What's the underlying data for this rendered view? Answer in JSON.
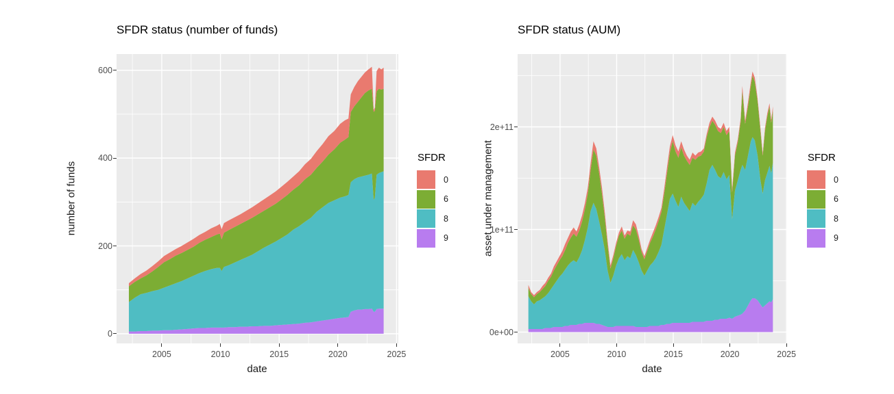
{
  "page": {
    "background": "#ffffff"
  },
  "panel_style": {
    "bg": "#ebebeb",
    "grid_major": "#ffffff",
    "grid_minor": "#ffffff",
    "tick_mark_color": "#333333",
    "tick_text_color": "#4d4d4d"
  },
  "palette": {
    "0": "#e97a6f",
    "6": "#7cad34",
    "8": "#4fbdc3",
    "9": "#b87cef"
  },
  "legend": {
    "title": "SFDR",
    "entries": [
      {
        "label": "0",
        "color": "#e97a6f"
      },
      {
        "label": "6",
        "color": "#7cad34"
      },
      {
        "label": "8",
        "color": "#4fbdc3"
      },
      {
        "label": "9",
        "color": "#b87cef"
      }
    ]
  },
  "chart_data": [
    {
      "type": "area",
      "stacked": true,
      "stack_order_bottom_to_top": [
        "9",
        "8",
        "6",
        "0"
      ],
      "title": "SFDR status (number of funds)",
      "xlabel": "date",
      "ylabel": "number of funds",
      "legend_title": "SFDR",
      "legend_position": "right",
      "grid": true,
      "xlim": [
        2001.15,
        2025.15
      ],
      "ylim": [
        -22,
        637
      ],
      "x_ticks": [
        {
          "v": 2005,
          "label": "2005"
        },
        {
          "v": 2010,
          "label": "2010"
        },
        {
          "v": 2015,
          "label": "2015"
        },
        {
          "v": 2020,
          "label": "2020"
        },
        {
          "v": 2025,
          "label": "2025"
        }
      ],
      "y_ticks": [
        {
          "v": 0,
          "label": "0"
        },
        {
          "v": 200,
          "label": "200"
        },
        {
          "v": 400,
          "label": "400"
        },
        {
          "v": 600,
          "label": "600"
        }
      ],
      "x_minor": [
        2002.5,
        2007.5,
        2012.5,
        2017.5,
        2022.5
      ],
      "y_minor": [
        100,
        300,
        500
      ],
      "x": [
        2002.2,
        2002.7,
        2003.2,
        2003.7,
        2004.2,
        2004.7,
        2005.2,
        2005.7,
        2006.2,
        2006.7,
        2007.2,
        2007.7,
        2008.2,
        2008.7,
        2009.2,
        2009.7,
        2009.95,
        2010.1,
        2010.3,
        2010.7,
        2011.2,
        2011.7,
        2012.2,
        2012.7,
        2013.2,
        2013.7,
        2014.2,
        2014.7,
        2015.2,
        2015.7,
        2016.2,
        2016.7,
        2017.2,
        2017.7,
        2018.2,
        2018.7,
        2019.2,
        2019.7,
        2020.2,
        2020.6,
        2020.9,
        2021.1,
        2021.4,
        2021.7,
        2022.0,
        2022.3,
        2022.6,
        2022.9,
        2023.05,
        2023.15,
        2023.3,
        2023.5,
        2023.7,
        2023.9
      ],
      "series": [
        {
          "name": "9",
          "values": [
            5,
            5,
            6,
            6,
            7,
            7,
            8,
            8,
            9,
            10,
            11,
            12,
            13,
            13,
            14,
            14,
            14,
            14,
            14,
            15,
            15,
            16,
            16,
            17,
            17,
            18,
            18,
            19,
            20,
            21,
            22,
            23,
            25,
            26,
            28,
            30,
            32,
            34,
            36,
            37,
            38,
            50,
            53,
            55,
            55,
            56,
            56,
            57,
            50,
            50,
            56,
            57,
            57,
            57
          ]
        },
        {
          "name": "8",
          "values": [
            67,
            77,
            84,
            87,
            90,
            93,
            97,
            102,
            106,
            110,
            115,
            120,
            125,
            130,
            133,
            136,
            136,
            129,
            138,
            141,
            147,
            152,
            158,
            163,
            171,
            178,
            185,
            191,
            198,
            205,
            215,
            222,
            230,
            238,
            250,
            258,
            266,
            270,
            274,
            276,
            278,
            295,
            299,
            301,
            303,
            304,
            306,
            308,
            255,
            260,
            306,
            309,
            311,
            313
          ]
        },
        {
          "name": "6",
          "values": [
            36,
            36,
            36,
            40,
            45,
            52,
            58,
            60,
            63,
            64,
            65,
            66,
            69,
            71,
            73,
            76,
            78,
            72,
            78,
            80,
            81,
            82,
            83,
            84,
            84,
            84,
            85,
            86,
            88,
            90,
            91,
            93,
            97,
            98,
            100,
            104,
            110,
            116,
            125,
            129,
            132,
            160,
            166,
            172,
            180,
            188,
            192,
            193,
            200,
            198,
            190,
            192,
            188,
            188
          ]
        },
        {
          "name": "0",
          "values": [
            7,
            8,
            10,
            11,
            12,
            13,
            14,
            15,
            15,
            16,
            17,
            18,
            18,
            18,
            20,
            20,
            22,
            23,
            22,
            22,
            22,
            22,
            23,
            24,
            25,
            26,
            27,
            28,
            29,
            30,
            30,
            32,
            34,
            36,
            38,
            40,
            42,
            42,
            43,
            44,
            42,
            40,
            44,
            47,
            47,
            47,
            48,
            50,
            5,
            7,
            46,
            48,
            46,
            48
          ]
        }
      ]
    },
    {
      "type": "area",
      "stacked": true,
      "stack_order_bottom_to_top": [
        "9",
        "8",
        "6",
        "0"
      ],
      "title": "SFDR status (AUM)",
      "xlabel": "date",
      "ylabel": "asset under management",
      "legend_title": "SFDR",
      "legend_position": "right",
      "grid": true,
      "value_unit": "1e9",
      "xlim": [
        2001.25,
        2025.05
      ],
      "ylim": [
        -11,
        271
      ],
      "x_ticks": [
        {
          "v": 2005,
          "label": "2005"
        },
        {
          "v": 2010,
          "label": "2010"
        },
        {
          "v": 2015,
          "label": "2015"
        },
        {
          "v": 2020,
          "label": "2020"
        },
        {
          "v": 2025,
          "label": "2025"
        }
      ],
      "y_ticks": [
        {
          "v": 0,
          "label": "0e+00"
        },
        {
          "v": 100,
          "label": "1e+11"
        },
        {
          "v": 200,
          "label": "2e+11"
        }
      ],
      "x_minor": [
        2002.5,
        2007.5,
        2012.5,
        2017.5,
        2022.5
      ],
      "y_minor": [
        50,
        150,
        250
      ],
      "x": [
        2002.2,
        2002.45,
        2002.7,
        2002.95,
        2003.2,
        2003.45,
        2003.7,
        2003.95,
        2004.2,
        2004.45,
        2004.7,
        2004.95,
        2005.2,
        2005.45,
        2005.7,
        2005.95,
        2006.2,
        2006.45,
        2006.7,
        2006.95,
        2007.2,
        2007.45,
        2007.7,
        2007.95,
        2008.2,
        2008.45,
        2008.7,
        2008.95,
        2009.2,
        2009.45,
        2009.7,
        2009.95,
        2010.2,
        2010.45,
        2010.7,
        2010.95,
        2011.2,
        2011.45,
        2011.7,
        2011.95,
        2012.2,
        2012.45,
        2012.7,
        2012.95,
        2013.2,
        2013.45,
        2013.7,
        2013.95,
        2014.2,
        2014.45,
        2014.7,
        2014.95,
        2015.2,
        2015.45,
        2015.7,
        2015.95,
        2016.2,
        2016.45,
        2016.7,
        2016.95,
        2017.2,
        2017.45,
        2017.7,
        2017.95,
        2018.2,
        2018.45,
        2018.7,
        2018.95,
        2019.2,
        2019.45,
        2019.7,
        2019.95,
        2020.2,
        2020.45,
        2020.7,
        2020.95,
        2021.1,
        2021.35,
        2021.6,
        2021.85,
        2022.0,
        2022.2,
        2022.45,
        2022.7,
        2022.9,
        2023.1,
        2023.3,
        2023.5,
        2023.65,
        2023.8
      ],
      "series": [
        {
          "name": "9",
          "values": [
            3,
            3,
            3,
            3,
            3,
            3,
            4,
            4,
            4,
            5,
            5,
            5,
            5,
            6,
            6,
            7,
            7,
            7,
            8,
            8,
            9,
            9,
            9,
            9,
            8,
            8,
            7,
            6,
            5,
            5,
            5,
            6,
            6,
            6,
            6,
            6,
            6,
            6,
            5,
            5,
            5,
            5,
            5,
            6,
            6,
            6,
            6,
            7,
            7,
            8,
            8,
            9,
            9,
            9,
            9,
            9,
            9,
            9,
            10,
            10,
            10,
            10,
            10,
            11,
            11,
            11,
            12,
            12,
            13,
            13,
            13,
            14,
            13,
            15,
            16,
            17,
            18,
            21,
            26,
            31,
            33,
            33,
            31,
            27,
            24,
            26,
            28,
            30,
            29,
            32
          ]
        },
        {
          "name": "8",
          "values": [
            32,
            27,
            24,
            27,
            28,
            30,
            31,
            34,
            38,
            41,
            45,
            49,
            52,
            55,
            59,
            61,
            63,
            61,
            65,
            72,
            81,
            93,
            109,
            117,
            112,
            100,
            88,
            74,
            55,
            43,
            50,
            59,
            66,
            70,
            64,
            68,
            66,
            74,
            70,
            63,
            55,
            50,
            55,
            59,
            62,
            66,
            72,
            78,
            93,
            107,
            122,
            126,
            119,
            113,
            123,
            117,
            113,
            109,
            116,
            113,
            117,
            120,
            124,
            134,
            147,
            152,
            146,
            140,
            137,
            143,
            136,
            139,
            97,
            123,
            132,
            141,
            145,
            137,
            146,
            155,
            157,
            154,
            141,
            121,
            111,
            122,
            127,
            132,
            126,
            133
          ]
        },
        {
          "name": "6",
          "values": [
            8,
            7,
            7,
            7,
            8,
            9,
            10,
            12,
            12,
            14,
            15,
            16,
            17,
            19,
            22,
            24,
            26,
            25,
            26,
            28,
            30,
            33,
            40,
            52,
            52,
            47,
            40,
            32,
            25,
            14,
            17,
            19,
            22,
            23,
            21,
            22,
            22,
            24,
            25,
            22,
            18,
            16,
            19,
            22,
            25,
            28,
            30,
            32,
            35,
            40,
            45,
            51,
            48,
            48,
            48,
            46,
            45,
            45,
            44,
            45,
            44,
            42,
            42,
            45,
            42,
            43,
            44,
            44,
            44,
            44,
            43,
            43,
            26,
            34,
            37,
            47,
            72,
            45,
            48,
            54,
            60,
            57,
            53,
            48,
            37,
            48,
            55,
            58,
            49,
            51
          ]
        },
        {
          "name": "0",
          "values": [
            3,
            2,
            2,
            2,
            2,
            3,
            3,
            3,
            3,
            4,
            4,
            4,
            5,
            6,
            5,
            6,
            6,
            5,
            6,
            6,
            6,
            6,
            7,
            8,
            7,
            6,
            6,
            5,
            4,
            3,
            3,
            3,
            3,
            4,
            3,
            3,
            4,
            5,
            5,
            4,
            3,
            3,
            3,
            3,
            4,
            4,
            4,
            4,
            5,
            6,
            6,
            6,
            6,
            6,
            6,
            6,
            5,
            5,
            5,
            4,
            4,
            4,
            3,
            3,
            4,
            4,
            4,
            4,
            4,
            4,
            4,
            4,
            3,
            3,
            3,
            3,
            5,
            3,
            4,
            4,
            4,
            4,
            3,
            3,
            2,
            3,
            3,
            3,
            3,
            4
          ]
        }
      ]
    }
  ]
}
